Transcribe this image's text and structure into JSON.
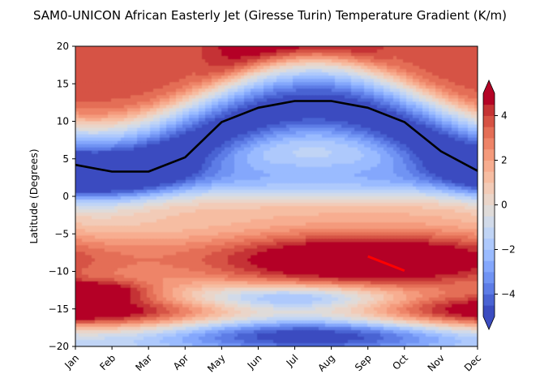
{
  "chart_data": {
    "type": "heatmap",
    "title": "SAM0-UNICON African Easterly Jet (Giresse Turin) Temperature Gradient (K/m)",
    "xlabel": "",
    "ylabel": "Latitude (Degrees)",
    "x_ticks": [
      "Jan",
      "Feb",
      "Mar",
      "Apr",
      "May",
      "Jun",
      "Jul",
      "Aug",
      "Sep",
      "Oct",
      "Nov",
      "Dec"
    ],
    "y_ticks": [
      20,
      15,
      10,
      5,
      0,
      -5,
      -10,
      -15,
      -20
    ],
    "ylim": [
      -20,
      20
    ],
    "colorbar": {
      "ticks": [
        4,
        2,
        0,
        -2,
        -4
      ],
      "range": [
        -5,
        5
      ],
      "extend": "both",
      "levels": [
        -5,
        -4.5,
        -4,
        -3.5,
        -3,
        -2.5,
        -2,
        -1.5,
        -1,
        -0.5,
        0,
        0.5,
        1,
        1.5,
        2,
        2.5,
        3,
        3.5,
        4,
        4.5,
        5
      ],
      "colors": [
        "#3b4cc0",
        "#4a63d3",
        "#5d7ce6",
        "#7093f3",
        "#84a7fc",
        "#9abbff",
        "#aec9fc",
        "#c0d4f5",
        "#d1dae9",
        "#dfdbd9",
        "#ead5c9",
        "#f2cbb7",
        "#f6bda2",
        "#f7ad90",
        "#f49a7b",
        "#ee8468",
        "#e46e56",
        "#d65244",
        "#c53334",
        "#b40426"
      ]
    },
    "grid": false,
    "series": [
      {
        "style": "black line",
        "x": [
          "Jan",
          "Feb",
          "Mar",
          "Apr",
          "May",
          "Jun",
          "Jul",
          "Aug",
          "Sep",
          "Oct",
          "Nov",
          "Dec"
        ],
        "y": [
          4.2,
          3.3,
          3.3,
          5.2,
          9.9,
          11.8,
          12.7,
          12.7,
          11.8,
          9.9,
          6.0,
          3.4
        ]
      },
      {
        "style": "red line",
        "x": [
          "Sep",
          "Oct"
        ],
        "y": [
          -8.0,
          -9.9
        ]
      }
    ],
    "colors": {
      "line_primary": "#000000",
      "line_secondary": "#ff0000"
    }
  }
}
